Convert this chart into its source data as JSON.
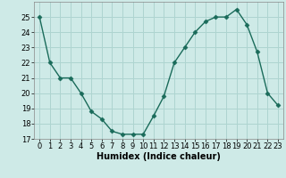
{
  "x": [
    0,
    1,
    2,
    3,
    4,
    5,
    6,
    7,
    8,
    9,
    10,
    11,
    12,
    13,
    14,
    15,
    16,
    17,
    18,
    19,
    20,
    21,
    22,
    23
  ],
  "y": [
    25.0,
    22.0,
    21.0,
    21.0,
    20.0,
    18.8,
    18.3,
    17.5,
    17.3,
    17.3,
    17.3,
    18.5,
    19.8,
    22.0,
    23.0,
    24.0,
    24.7,
    25.0,
    25.0,
    25.5,
    24.5,
    22.7,
    20.0,
    19.2
  ],
  "line_color": "#1a6b5a",
  "marker": "D",
  "markersize": 2.5,
  "linewidth": 1.0,
  "background_color": "#ceeae7",
  "grid_color": "#aed4d0",
  "xlabel": "Humidex (Indice chaleur)",
  "xlabel_fontsize": 7,
  "tick_fontsize": 6,
  "ylim": [
    17,
    26
  ],
  "xlim": [
    -0.5,
    23.5
  ],
  "yticks": [
    17,
    18,
    19,
    20,
    21,
    22,
    23,
    24,
    25
  ],
  "xticks": [
    0,
    1,
    2,
    3,
    4,
    5,
    6,
    7,
    8,
    9,
    10,
    11,
    12,
    13,
    14,
    15,
    16,
    17,
    18,
    19,
    20,
    21,
    22,
    23
  ]
}
